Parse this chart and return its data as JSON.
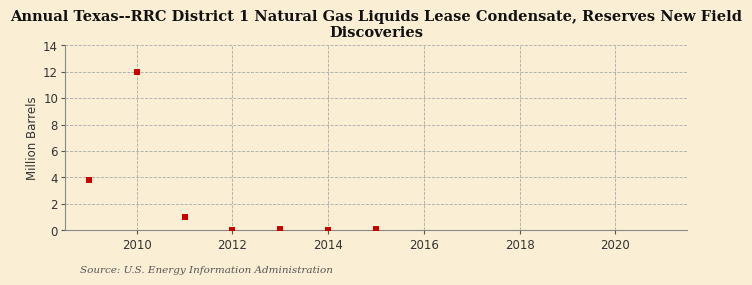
{
  "title": "Annual Texas--RRC District 1 Natural Gas Liquids Lease Condensate, Reserves New Field\nDiscoveries",
  "ylabel": "Million Barrels",
  "source": "Source: U.S. Energy Information Administration",
  "background_color": "#faefd4",
  "plot_bg_color": "#faefd4",
  "marker_color": "#cc0000",
  "years": [
    2009,
    2010,
    2011,
    2012,
    2013,
    2014,
    2015
  ],
  "values": [
    3.8,
    12.0,
    1.0,
    0.04,
    0.07,
    0.05,
    0.08
  ],
  "xlim": [
    2008.5,
    2021.5
  ],
  "ylim": [
    0,
    14
  ],
  "yticks": [
    0,
    2,
    4,
    6,
    8,
    10,
    12,
    14
  ],
  "xticks": [
    2010,
    2012,
    2014,
    2016,
    2018,
    2020
  ],
  "title_fontsize": 10.5,
  "label_fontsize": 8.5,
  "source_fontsize": 7.5,
  "tick_fontsize": 8.5,
  "marker_size": 4
}
